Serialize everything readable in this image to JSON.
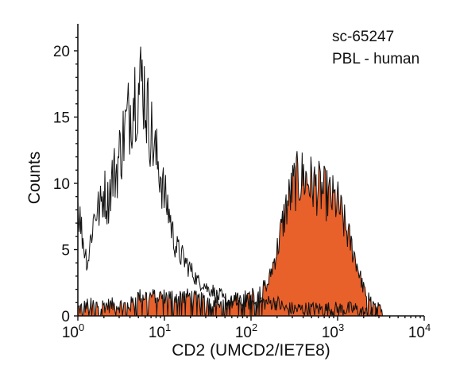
{
  "chart_data": {
    "type": "area",
    "xscale": "log",
    "xlim": [
      1,
      10000
    ],
    "ylim": [
      0,
      22
    ],
    "xlabel": "CD2 (UMCD2/IE7E8)",
    "ylabel": "Counts",
    "x_ticks": [
      {
        "base": "10",
        "exp": "0"
      },
      {
        "base": "10",
        "exp": "1"
      },
      {
        "base": "10",
        "exp": "2"
      },
      {
        "base": "10",
        "exp": "3"
      },
      {
        "base": "10",
        "exp": "4"
      }
    ],
    "y_ticks": [
      "0",
      "5",
      "10",
      "15",
      "20"
    ],
    "annotations": [
      "sc-65247",
      "PBL - human"
    ],
    "grid": false,
    "series": [
      {
        "fill": "none",
        "stroke": "#111111",
        "x": [
          1.0,
          1.1,
          1.2,
          1.3,
          1.45,
          1.6,
          1.8,
          2.0,
          2.2,
          2.5,
          2.8,
          3.1,
          3.5,
          4.0,
          4.5,
          5.0,
          5.6,
          6.3,
          7.0,
          7.9,
          8.9,
          10,
          11.2,
          12.6,
          14.1,
          15.8,
          17.8,
          20,
          22.4,
          25.1,
          28.2,
          31.6,
          35.5,
          39.8,
          44.7,
          50,
          60,
          70,
          80,
          100,
          130,
          160,
          200,
          250,
          320,
          400,
          500,
          630,
          800,
          1000,
          1260,
          1600,
          2000,
          2500,
          3200,
          3500
        ],
        "y": [
          8.5,
          6.5,
          5.0,
          4.0,
          6.5,
          8.0,
          8.0,
          9.5,
          8.5,
          10.5,
          11.0,
          12.5,
          14.0,
          15.5,
          17.0,
          17.0,
          18.0,
          15.5,
          14.0,
          12.0,
          11.0,
          9.0,
          8.0,
          6.0,
          5.0,
          4.5,
          4.0,
          3.5,
          3.0,
          2.5,
          2.5,
          2.0,
          2.0,
          1.5,
          1.5,
          1.0,
          1.0,
          1.0,
          1.0,
          1.0,
          1.0,
          1.0,
          1.0,
          0.5,
          0.5,
          0.5,
          0.5,
          0.5,
          0.5,
          0.5,
          0.5,
          0.5,
          0.2,
          0.1,
          0.0,
          0.0
        ]
      },
      {
        "fill": "#e8602a",
        "stroke": "#111111",
        "x": [
          1.0,
          1.3,
          1.6,
          2.0,
          2.5,
          3.2,
          4.0,
          5.0,
          6.3,
          7.9,
          10,
          12.6,
          15.8,
          20,
          25.1,
          31.6,
          39.8,
          50,
          63,
          79,
          100,
          126,
          158,
          200,
          251,
          316,
          398,
          501,
          631,
          794,
          1000,
          1260,
          1580,
          2000,
          2510,
          3160,
          3500
        ],
        "y": [
          0.5,
          0.8,
          0.8,
          0.8,
          0.8,
          0.8,
          0.8,
          1.5,
          1.5,
          1.5,
          1.5,
          1.5,
          1.5,
          1.5,
          1.2,
          1.2,
          1.2,
          1.2,
          1.2,
          1.3,
          1.5,
          1.8,
          2.5,
          5.0,
          8.0,
          10.0,
          10.5,
          10.0,
          9.5,
          9.0,
          8.5,
          6.5,
          4.5,
          2.0,
          0.8,
          0.3,
          0.0
        ]
      }
    ]
  }
}
